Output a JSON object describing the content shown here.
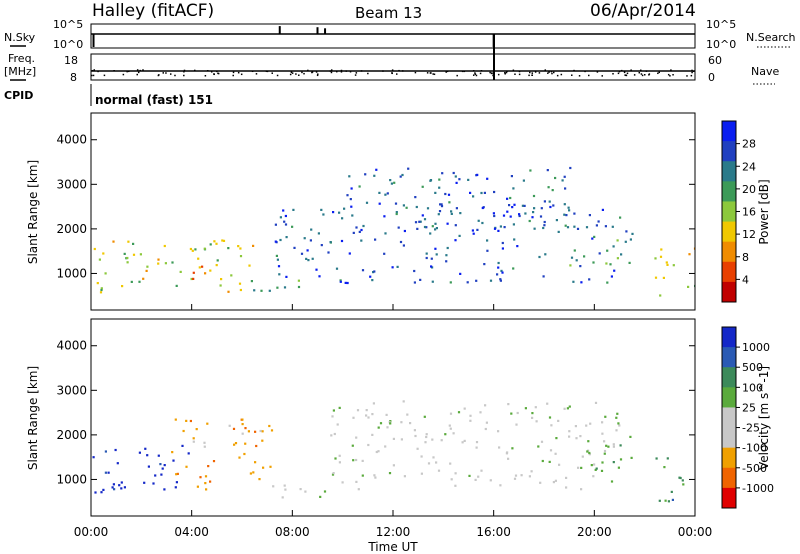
{
  "header": {
    "station": "Halley (fitACF)",
    "beam": "Beam 13",
    "date": "06/Apr/2014"
  },
  "chart_data": [
    {
      "type": "line",
      "name": "noise-panel",
      "left_label": "N.Sky",
      "right_label": "N.Search",
      "left_ticks": [
        "10^5",
        "10^0"
      ],
      "right_ticks": [
        "10^5",
        "10^0"
      ],
      "baseline_level": 0.6,
      "spikes": [
        {
          "t": 0.1,
          "level": 0.0
        },
        {
          "t": 7.5,
          "level": 0.95
        },
        {
          "t": 9.0,
          "level": 0.9
        },
        {
          "t": 9.3,
          "level": 0.85
        },
        {
          "t": 16.0,
          "level": 0.0
        }
      ]
    },
    {
      "type": "scatter",
      "name": "frequency-panel",
      "left_label": "Freq.",
      "left_unit": "[MHz]",
      "right_label": "Nave",
      "left_ticks": [
        18,
        8
      ],
      "right_ticks": [
        60,
        0
      ],
      "freq_level_mhz": 11,
      "cpid_label": "CPID",
      "cpid_text": "normal (fast) 151"
    },
    {
      "type": "heatmap",
      "name": "power-panel",
      "ylabel": "Slant Range [km]",
      "yticks": [
        1000,
        2000,
        3000,
        4000
      ],
      "ylim": [
        180,
        4600
      ],
      "xlim": [
        0,
        24
      ],
      "colorbar": {
        "label": "Power [dB]",
        "ticks": [
          "4",
          "8",
          "12",
          "16",
          "20",
          "24",
          "28"
        ],
        "colors": [
          "#0a1ef0",
          "#2040c0",
          "#2a7a8a",
          "#3c9a58",
          "#8cc83c",
          "#f0c800",
          "#f08c00",
          "#e84000",
          "#c00000"
        ]
      },
      "echo_regions": [
        {
          "t0": 0.0,
          "t1": 6.8,
          "r0": 600,
          "r1": 1800,
          "level": 0.55
        },
        {
          "t0": 3.6,
          "t1": 5.0,
          "r0": 800,
          "r1": 1200,
          "level": 0.85
        },
        {
          "t0": 6.0,
          "t1": 9.5,
          "r0": 600,
          "r1": 900,
          "level": 0.4
        },
        {
          "t0": 7.3,
          "t1": 21.5,
          "r0": 800,
          "r1": 2600,
          "level": 0.15
        },
        {
          "t0": 10.0,
          "t1": 19.0,
          "r0": 2000,
          "r1": 3400,
          "level": 0.2
        },
        {
          "t0": 18.8,
          "t1": 21.5,
          "r0": 1200,
          "r1": 1800,
          "level": 0.35
        },
        {
          "t0": 22.3,
          "t1": 24.0,
          "r0": 500,
          "r1": 1600,
          "level": 0.6
        }
      ]
    },
    {
      "type": "heatmap",
      "name": "velocity-panel",
      "ylabel": "Slant Range [km]",
      "yticks": [
        1000,
        2000,
        3000,
        4000
      ],
      "ylim": [
        180,
        4600
      ],
      "xlim": [
        0,
        24
      ],
      "xticks": [
        "00:00",
        "04:00",
        "08:00",
        "12:00",
        "16:00",
        "20:00",
        "00:00"
      ],
      "xlabel": "Time UT",
      "colorbar": {
        "label": "Velocity [m s^-1]",
        "ticks": [
          "1000",
          "500",
          "100",
          "25",
          "-25",
          "-100",
          "-500",
          "-1000"
        ],
        "colors": [
          "#1428c8",
          "#2a5ab4",
          "#3c8a5a",
          "#5aaa3c",
          "#c8c8c8",
          "#c8c8c8",
          "#f0a000",
          "#f06400",
          "#e00000"
        ]
      },
      "echo_regions": [
        {
          "t0": 0.0,
          "t1": 4.0,
          "r0": 600,
          "r1": 1800,
          "color_index": 0
        },
        {
          "t0": 3.0,
          "t1": 7.2,
          "r0": 800,
          "r1": 2400,
          "color_index": 6
        },
        {
          "t0": 6.0,
          "t1": 9.5,
          "r0": 600,
          "r1": 900,
          "color_index": 4
        },
        {
          "t0": 9.5,
          "t1": 21.0,
          "r0": 800,
          "r1": 2800,
          "color_index": 4
        },
        {
          "t0": 19.0,
          "t1": 21.5,
          "r0": 1200,
          "r1": 2000,
          "color_index": 3
        },
        {
          "t0": 22.3,
          "t1": 24.0,
          "r0": 500,
          "r1": 1500,
          "color_index": 2
        }
      ]
    }
  ]
}
